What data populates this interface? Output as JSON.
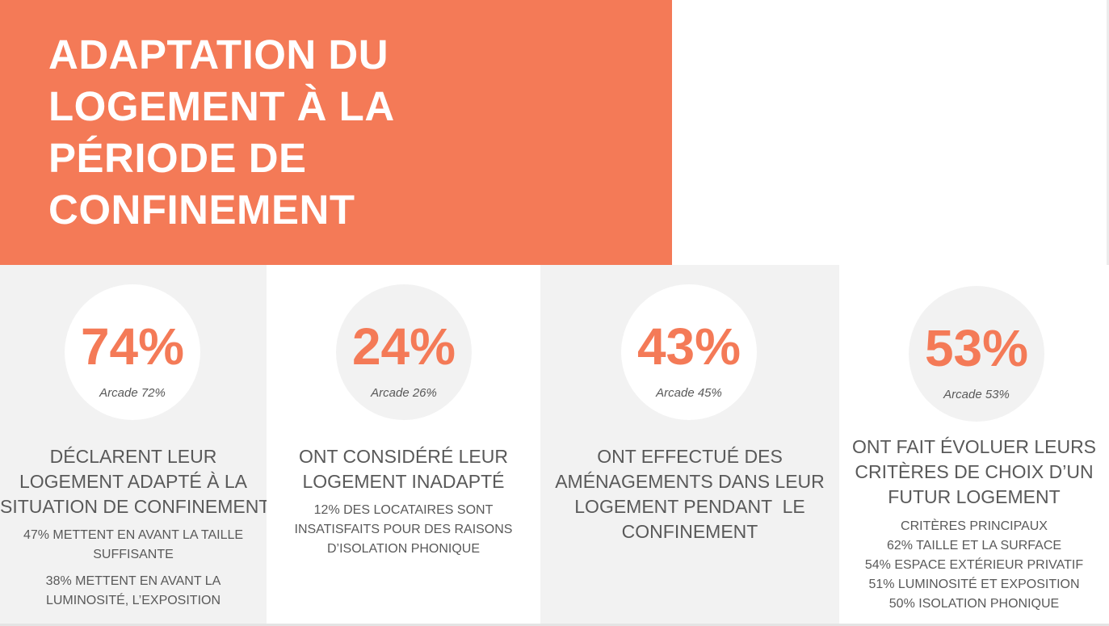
{
  "title_lines": [
    "ADAPTATION DU",
    "LOGEMENT À LA",
    "PÉRIODE DE",
    "CONFINEMENT"
  ],
  "colors": {
    "accent": "#f47a57",
    "panel_gray": "#f2f2f2",
    "text": "#595959"
  },
  "stats": [
    {
      "percent": "74%",
      "arcade": "Arcade 72%",
      "headline": [
        "DÉCLARENT LEUR",
        "LOGEMENT ADAPTÉ À LA",
        "SITUATION DE CONFINEMENT"
      ],
      "detail_a": [
        "47% METTENT EN AVANT LA TAILLE",
        "SUFFISANTE"
      ],
      "detail_b": [
        "38% METTENT EN AVANT LA",
        "LUMINOSITÉ, L’EXPOSITION"
      ]
    },
    {
      "percent": "24%",
      "arcade": "Arcade 26%",
      "headline": [
        "ONT CONSIDÉRÉ LEUR",
        "LOGEMENT INADAPTÉ"
      ],
      "detail_a": [
        "12% DES LOCATAIRES SONT",
        "INSATISFAITS POUR DES RAISONS",
        "D’ISOLATION PHONIQUE"
      ]
    },
    {
      "percent": "43%",
      "arcade": "Arcade 45%",
      "headline": [
        "ONT EFFECTUÉ DES",
        "AMÉNAGEMENTS DANS LEUR",
        "LOGEMENT PENDANT  LE",
        "CONFINEMENT"
      ]
    },
    {
      "percent": "53%",
      "arcade": "Arcade 53%",
      "headline": [
        "ONT FAIT ÉVOLUER LEURS",
        "CRITÈRES DE CHOIX D’UN",
        "FUTUR LOGEMENT"
      ],
      "detail_a": [
        "CRITÈRES PRINCIPAUX",
        "62% TAILLE ET LA SURFACE",
        "54% ESPACE EXTÉRIEUR PRIVATIF",
        "51% LUMINOSITÉ ET EXPOSITION",
        "50% ISOLATION PHONIQUE"
      ]
    }
  ]
}
